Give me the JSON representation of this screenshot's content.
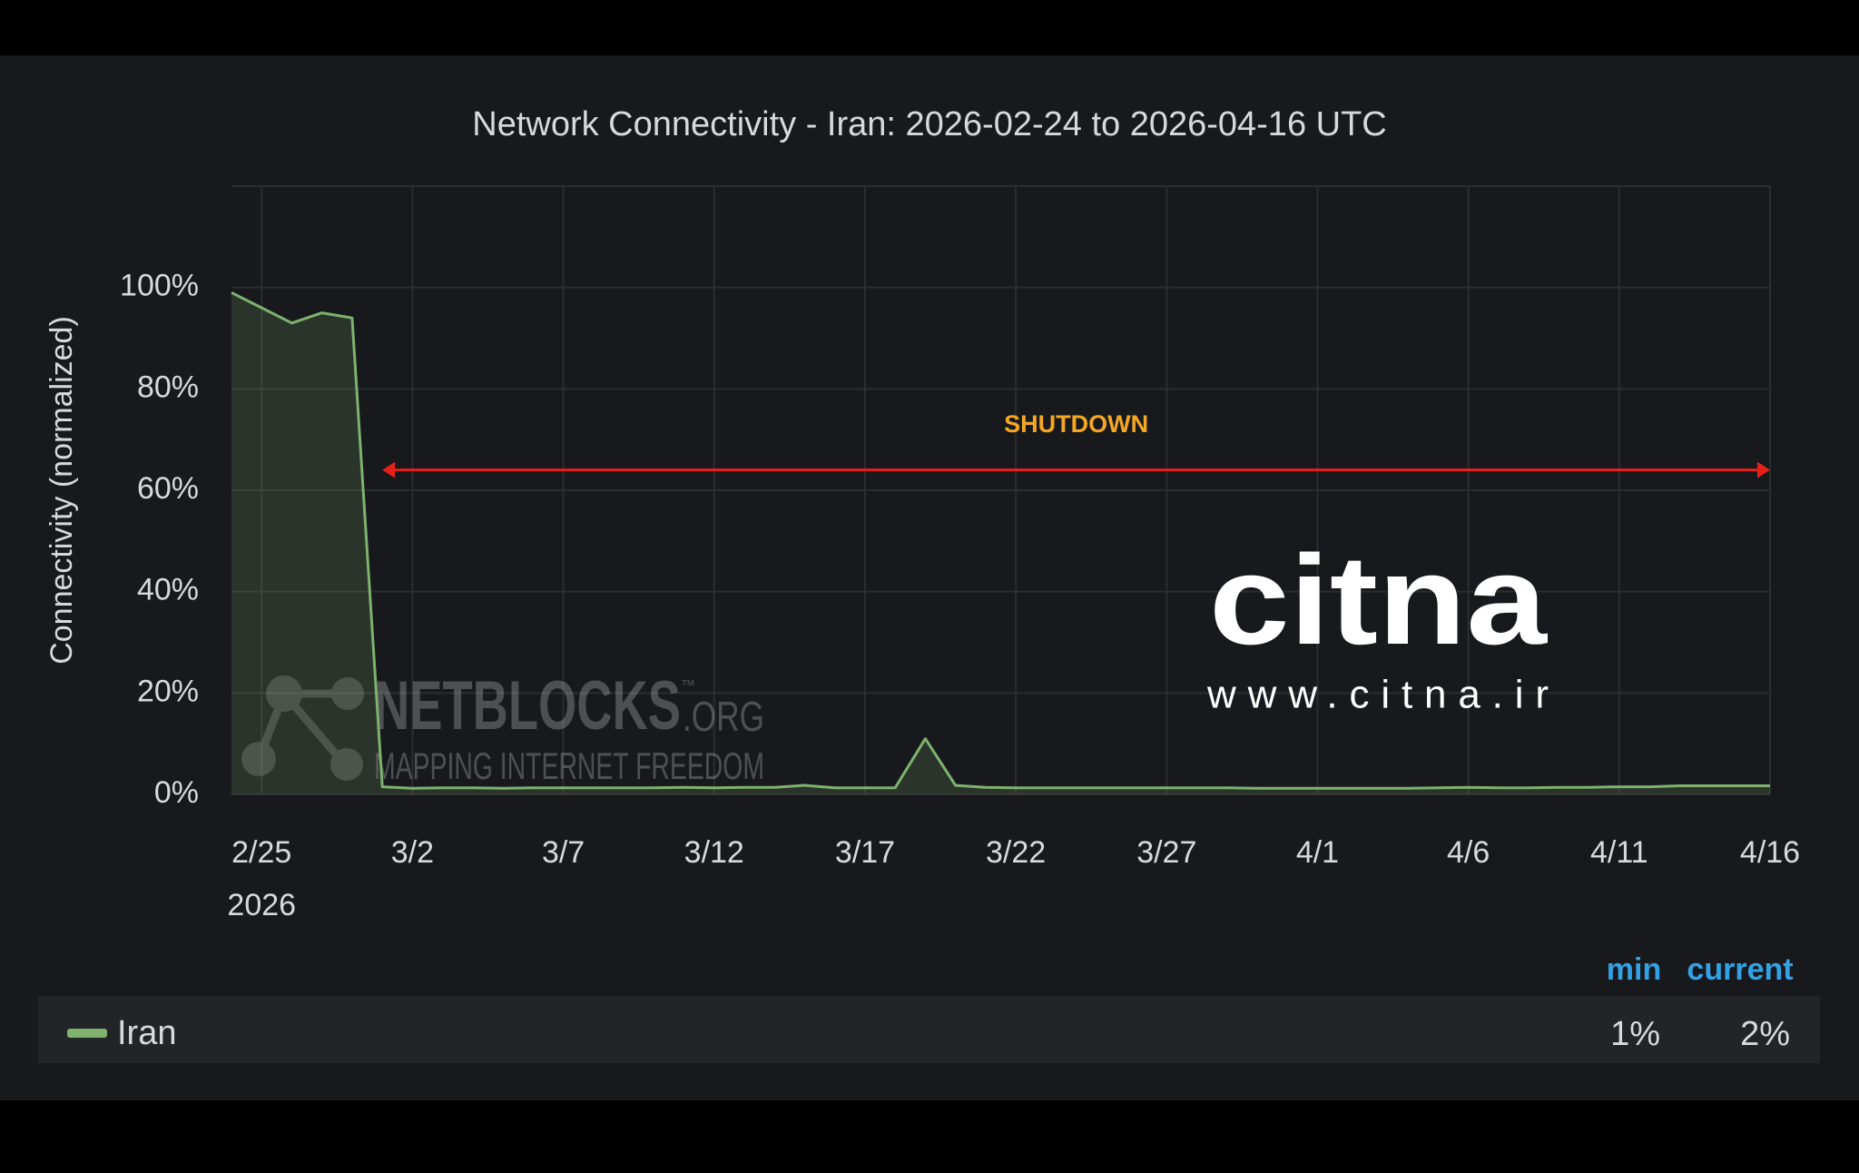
{
  "chart_data": {
    "type": "line",
    "title": "Network Connectivity - Iran: 2026-02-24 to 2026-04-16 UTC",
    "y_label": "Connectivity (normalized)",
    "x": [
      "2026-02-24",
      "2026-02-25",
      "2026-02-26",
      "2026-02-27",
      "2026-02-28",
      "2026-03-01",
      "2026-03-02",
      "2026-03-03",
      "2026-03-04",
      "2026-03-05",
      "2026-03-06",
      "2026-03-07",
      "2026-03-08",
      "2026-03-09",
      "2026-03-10",
      "2026-03-11",
      "2026-03-12",
      "2026-03-13",
      "2026-03-14",
      "2026-03-15",
      "2026-03-16",
      "2026-03-17",
      "2026-03-18",
      "2026-03-19",
      "2026-03-20",
      "2026-03-21",
      "2026-03-22",
      "2026-03-23",
      "2026-03-24",
      "2026-03-25",
      "2026-03-26",
      "2026-03-27",
      "2026-03-28",
      "2026-03-29",
      "2026-03-30",
      "2026-03-31",
      "2026-04-01",
      "2026-04-02",
      "2026-04-03",
      "2026-04-04",
      "2026-04-05",
      "2026-04-06",
      "2026-04-07",
      "2026-04-08",
      "2026-04-09",
      "2026-04-10",
      "2026-04-11",
      "2026-04-12",
      "2026-04-13",
      "2026-04-14",
      "2026-04-15",
      "2026-04-16"
    ],
    "series": [
      {
        "name": "Iran",
        "color": "#7eb26d",
        "values": [
          99,
          96,
          93,
          95,
          94,
          1.5,
          1.2,
          1.3,
          1.3,
          1.2,
          1.3,
          1.3,
          1.3,
          1.3,
          1.3,
          1.4,
          1.3,
          1.4,
          1.4,
          1.8,
          1.3,
          1.3,
          1.3,
          11,
          1.8,
          1.4,
          1.3,
          1.3,
          1.3,
          1.3,
          1.3,
          1.3,
          1.3,
          1.3,
          1.2,
          1.2,
          1.2,
          1.2,
          1.2,
          1.2,
          1.3,
          1.4,
          1.3,
          1.3,
          1.4,
          1.4,
          1.5,
          1.5,
          1.7,
          1.7,
          1.7,
          1.7
        ]
      }
    ],
    "xlim": [
      "2026-02-24",
      "2026-04-16"
    ],
    "xticks": [
      {
        "value": "2026-02-25",
        "label": "2/25"
      },
      {
        "value": "2026-03-02",
        "label": "3/2"
      },
      {
        "value": "2026-03-07",
        "label": "3/7"
      },
      {
        "value": "2026-03-12",
        "label": "3/12"
      },
      {
        "value": "2026-03-17",
        "label": "3/17"
      },
      {
        "value": "2026-03-22",
        "label": "3/22"
      },
      {
        "value": "2026-03-27",
        "label": "3/27"
      },
      {
        "value": "2026-04-01",
        "label": "4/1"
      },
      {
        "value": "2026-04-06",
        "label": "4/6"
      },
      {
        "value": "2026-04-11",
        "label": "4/11"
      },
      {
        "value": "2026-04-16",
        "label": "4/16"
      }
    ],
    "x_year_label": "2026",
    "ylim": [
      0,
      120
    ],
    "yticks": [
      {
        "value": 0,
        "label": "0%"
      },
      {
        "value": 20,
        "label": "20%"
      },
      {
        "value": 40,
        "label": "40%"
      },
      {
        "value": 60,
        "label": "60%"
      },
      {
        "value": 80,
        "label": "80%"
      },
      {
        "value": 100,
        "label": "100%"
      }
    ],
    "grid": true,
    "annotation": {
      "text": "SHUTDOWN",
      "x_start": "2026-03-01",
      "x_end": "2026-04-16",
      "y": 64,
      "color": "#e8201a",
      "text_color": "#f5a623"
    },
    "legend_stats": {
      "headers": [
        "min",
        "current"
      ],
      "values": [
        1,
        2
      ],
      "value_labels": [
        "1%",
        "2%"
      ]
    },
    "watermarks": {
      "netblocks": "NETBLOCKS",
      "netblocks_tld": ".ORG",
      "netblocks_tm": "™",
      "netblocks_tagline": "MAPPING INTERNET FREEDOM",
      "citna_logo": "citna",
      "citna_url": "www.citna.ir"
    }
  }
}
